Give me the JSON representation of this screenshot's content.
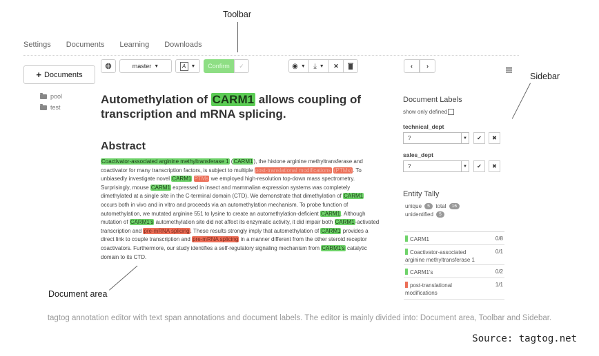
{
  "callouts": {
    "toolbar": "Toolbar",
    "sidebar": "Sidebar",
    "document_area": "Document area"
  },
  "nav": {
    "items": [
      "Settings",
      "Documents",
      "Learning",
      "Downloads"
    ]
  },
  "left": {
    "documents_button": "Documents",
    "folders": [
      "pool",
      "test"
    ]
  },
  "toolbar": {
    "branch": "master",
    "confirm_label": "Confirm"
  },
  "document": {
    "title_pre": "Automethylation of ",
    "title_entity": "CARM1",
    "title_post": " allows coupling of transcription and mRNA splicing.",
    "abstract_heading": "Abstract",
    "abstract_segments": [
      {
        "t": "Coactivator-associated arginine methyltransferase 1",
        "e": "g"
      },
      {
        "t": " ("
      },
      {
        "t": "CARM1",
        "e": "g"
      },
      {
        "t": "), the histone arginine methyltransferase and coactivator for many transcription factors, is subject to multiple "
      },
      {
        "t": "post-translational modifications",
        "e": "rf"
      },
      {
        "t": " "
      },
      {
        "t": "(PTMs)",
        "e": "rf"
      },
      {
        "t": ". To unbiasedly investigate novel "
      },
      {
        "t": "CARM1",
        "e": "g"
      },
      {
        "t": " "
      },
      {
        "t": "PTMs",
        "e": "rf"
      },
      {
        "t": " we employed high-resolution top-down mass spectrometry. Surprisingly, mouse "
      },
      {
        "t": "CARM1",
        "e": "g"
      },
      {
        "t": " expressed in insect and mammalian expression systems was completely dimethylated at a single site in the C-terminal domain (CTD). We demonstrate that dimethylation of "
      },
      {
        "t": "CARM1",
        "e": "g"
      },
      {
        "t": " occurs both in vivo and in vitro and proceeds via an automethylation mechanism. To probe function of automethylation, we mutated arginine 551 to lysine to create an automethylation-deficient "
      },
      {
        "t": "CARM1",
        "e": "g"
      },
      {
        "t": ". Although mutation of "
      },
      {
        "t": "CARM1's",
        "e": "g"
      },
      {
        "t": " automethylation site did not affect its enzymatic activity, it did impair both "
      },
      {
        "t": "CARM1",
        "e": "g"
      },
      {
        "t": "-activated transcription and "
      },
      {
        "t": "pre-mRNA splicing",
        "e": "r"
      },
      {
        "t": ". These results strongly imply that automethylation of "
      },
      {
        "t": "CARM1",
        "e": "g"
      },
      {
        "t": " provides a direct link to couple transcription and "
      },
      {
        "t": "pre-mRNA splicing",
        "e": "r"
      },
      {
        "t": " in a manner different from the other steroid receptor coactivators. Furthermore, our study identifies a self-regulatory signaling mechanism from "
      },
      {
        "t": "CARM1's",
        "e": "g"
      },
      {
        "t": " catalytic domain to its CTD."
      }
    ]
  },
  "sidebar": {
    "doc_labels_heading": "Document Labels",
    "show_only_defined": "show only defined",
    "labels": [
      {
        "name": "technical_dept",
        "value": "?"
      },
      {
        "name": "sales_dept",
        "value": "?"
      }
    ],
    "tally_heading": "Entity Tally",
    "stats": {
      "unique_label": "unique",
      "unique": "5",
      "total_label": "total",
      "total": "16",
      "unidentified_label": "unidentified",
      "unidentified": "5"
    },
    "tally": [
      {
        "name": "CARM1",
        "count": "0/8",
        "color": "#6fd36a"
      },
      {
        "name": "Coactivator-associated arginine methyltransferase 1",
        "count": "0/1",
        "color": "#6fd36a"
      },
      {
        "name": "CARM1's",
        "count": "0/2",
        "color": "#6fd36a"
      },
      {
        "name": "post-translational modifications",
        "count": "1/1",
        "color": "#ec6f58"
      }
    ]
  },
  "caption": "tagtog annotation editor with text span annotations and document labels. The editor is mainly divided into: Document area, Toolbar and Sidebar.",
  "source": "Source: tagtog.net"
}
